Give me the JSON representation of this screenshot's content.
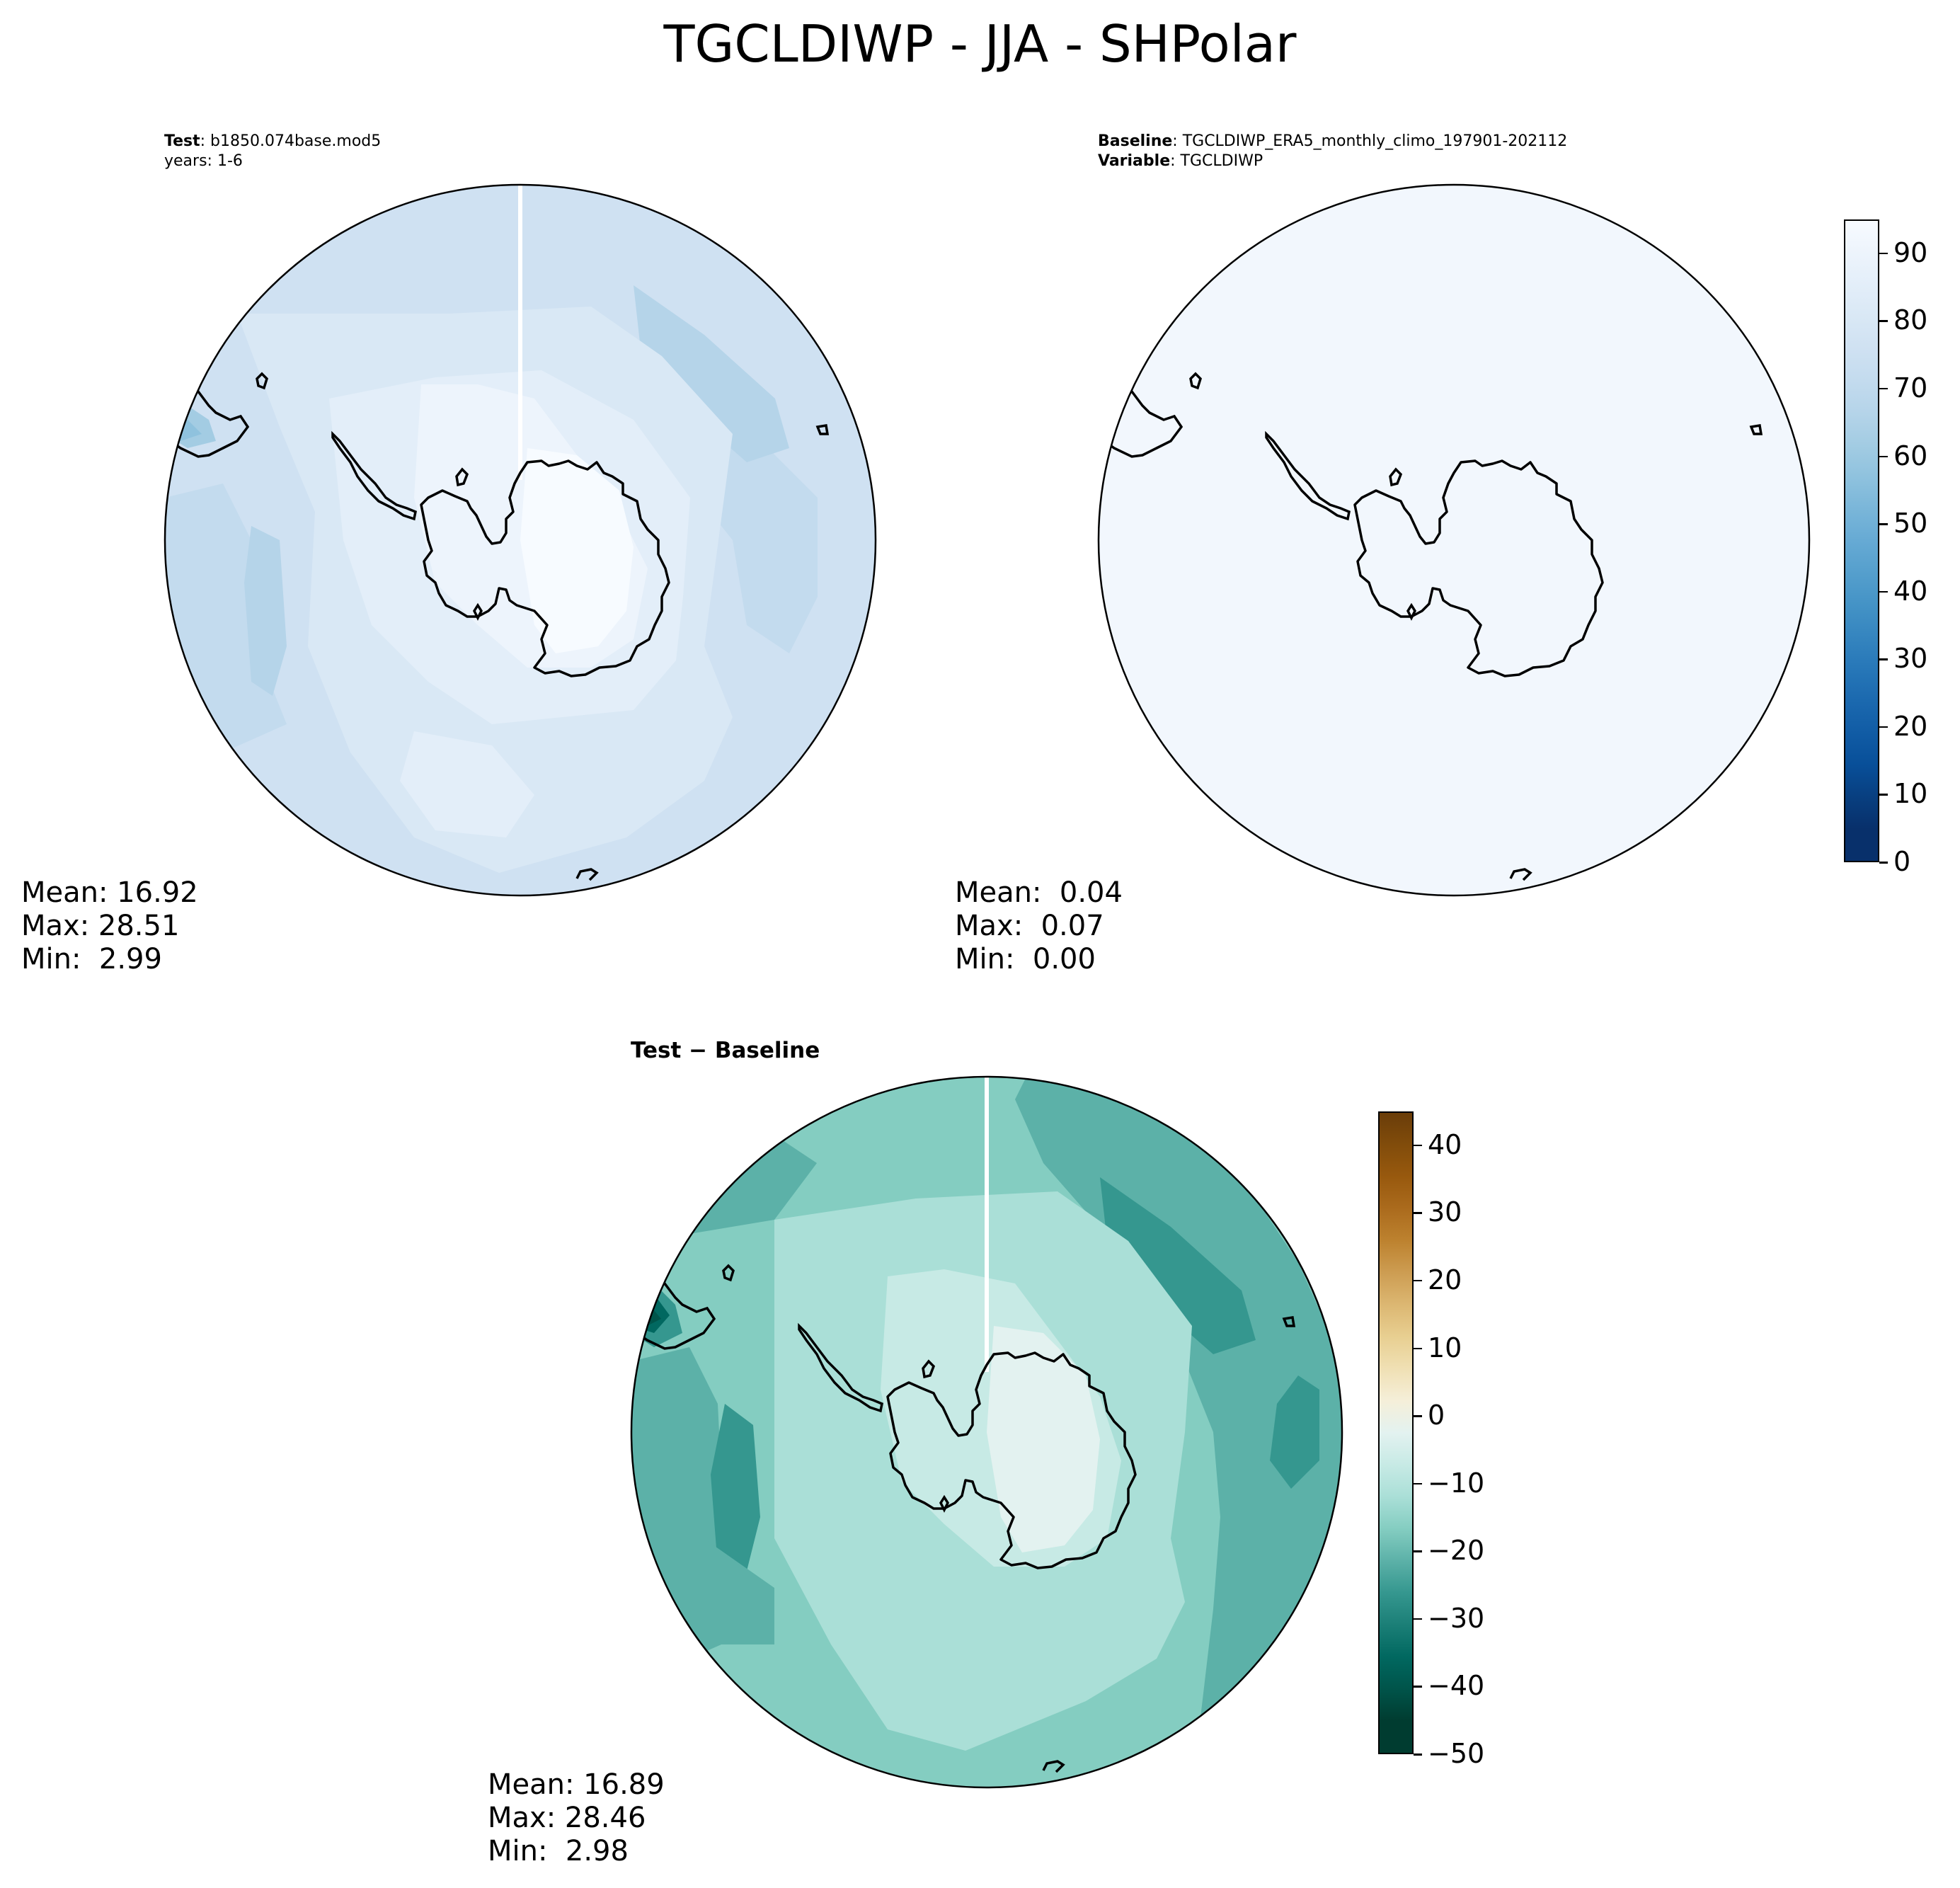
{
  "title": "TGCLDIWP - JJA - SHPolar",
  "colors": {
    "blues": [
      "#f7fbff",
      "#edf4fc",
      "#e3eef9",
      "#d9e8f5",
      "#cfe1f2",
      "#c3dbee",
      "#b5d4e9",
      "#a3cce3",
      "#8fc2de",
      "#7ab6d9",
      "#66aad4",
      "#559fcd",
      "#4493c6",
      "#3585bf",
      "#2777b8",
      "#1b69af",
      "#115ca5",
      "#084f99",
      "#083f80",
      "#08306b"
    ],
    "brbg": [
      "#6a3d09",
      "#814c0b",
      "#98590e",
      "#ab6b1d",
      "#bd822f",
      "#cd9d52",
      "#dcb772",
      "#e8cf91",
      "#f0e0b4",
      "#f5efd9",
      "#e3f2f0",
      "#c7eae5",
      "#aadfd7",
      "#84cdc1",
      "#5cb1a8",
      "#35978f",
      "#1b7f77",
      "#016860",
      "#00544a",
      "#003c30"
    ],
    "map_outline": "#000000"
  },
  "panels": {
    "test": {
      "label_bold": "Test",
      "case": ": b1850.074base.mod5",
      "years": "years: 1-6",
      "stats": {
        "mean": "Mean: 16.92",
        "max": "Max: 28.51",
        "min": "Min:  2.99"
      }
    },
    "baseline": {
      "label_bold": "Baseline",
      "case": ": TGCLDIWP_ERA5_monthly_climo_197901-202112",
      "variable_bold": "Variable",
      "variable": ": TGCLDIWP",
      "stats": {
        "mean": "Mean:  0.04",
        "max": "Max:  0.07",
        "min": "Min:  0.00"
      }
    },
    "diff": {
      "label": "Test − Baseline",
      "stats": {
        "mean": "Mean: 16.89",
        "max": "Max: 28.46",
        "min": "Min:  2.98"
      }
    }
  },
  "colorbars": {
    "main": {
      "min": 0,
      "max": 95,
      "ticks": [
        "0",
        "10",
        "20",
        "30",
        "40",
        "50",
        "60",
        "70",
        "80",
        "90"
      ],
      "tick_values": [
        0,
        10,
        20,
        30,
        40,
        50,
        60,
        70,
        80,
        90
      ]
    },
    "diff": {
      "min": -50,
      "max": 45,
      "ticks": [
        "−50",
        "−40",
        "−30",
        "−20",
        "−10",
        "0",
        "10",
        "20",
        "30",
        "40"
      ],
      "tick_values": [
        -50,
        -40,
        -30,
        -20,
        -10,
        0,
        10,
        20,
        30,
        40
      ]
    }
  }
}
